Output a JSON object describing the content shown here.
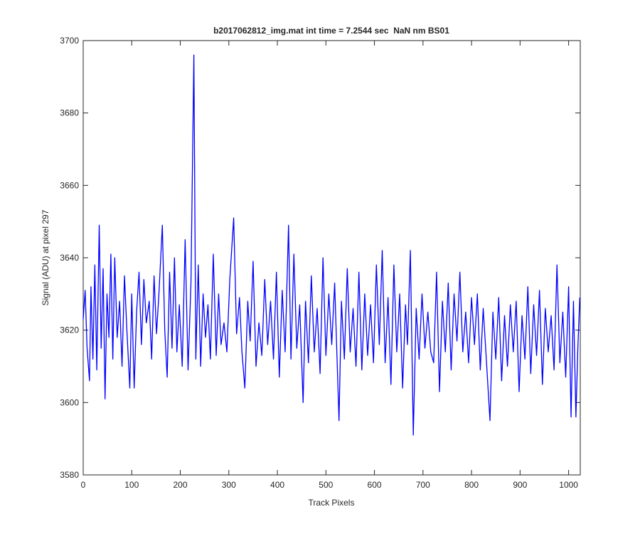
{
  "chart_data": {
    "type": "line",
    "title": "b2017062812_img.mat int time = 7.2544 sec  NaN nm BS01",
    "x_label": "Track Pixels",
    "y_label": "Signal (ADU) at pixel 297",
    "color": "#0000ff",
    "xlim": [
      0,
      1024
    ],
    "xticks": [
      0,
      100,
      200,
      300,
      400,
      500,
      600,
      700,
      800,
      900,
      1000
    ],
    "ylim": [
      3580,
      3700
    ],
    "yticks": [
      3580,
      3600,
      3620,
      3640,
      3660,
      3680,
      3700
    ],
    "grid": false,
    "x": [
      0,
      4,
      8,
      13,
      16,
      20,
      24,
      28,
      33,
      37,
      41,
      45,
      49,
      53,
      57,
      61,
      65,
      70,
      75,
      80,
      85,
      90,
      96,
      100,
      105,
      110,
      115,
      120,
      125,
      130,
      136,
      141,
      146,
      151,
      156,
      163,
      168,
      173,
      178,
      183,
      188,
      193,
      198,
      204,
      210,
      216,
      222,
      228,
      232,
      237,
      242,
      247,
      252,
      257,
      262,
      268,
      274,
      279,
      284,
      290,
      296,
      302,
      310,
      316,
      322,
      327,
      333,
      339,
      344,
      350,
      356,
      362,
      368,
      374,
      380,
      386,
      392,
      398,
      404,
      410,
      416,
      423,
      428,
      434,
      440,
      446,
      453,
      458,
      464,
      470,
      476,
      482,
      488,
      494,
      500,
      506,
      512,
      518,
      527,
      532,
      538,
      544,
      550,
      556,
      562,
      568,
      574,
      580,
      586,
      592,
      598,
      604,
      610,
      616,
      622,
      628,
      634,
      640,
      646,
      652,
      658,
      664,
      668,
      674,
      680,
      686,
      692,
      698,
      704,
      710,
      716,
      722,
      728,
      734,
      740,
      746,
      752,
      758,
      764,
      770,
      776,
      782,
      788,
      794,
      800,
      806,
      812,
      818,
      824,
      830,
      838,
      844,
      850,
      856,
      862,
      868,
      874,
      880,
      886,
      892,
      898,
      904,
      910,
      916,
      922,
      928,
      934,
      940,
      946,
      952,
      958,
      964,
      970,
      976,
      982,
      988,
      994,
      1000,
      1005,
      1010,
      1015,
      1019,
      1023
    ],
    "values": [
      3623,
      3631,
      3615,
      3606,
      3632,
      3612,
      3638,
      3609,
      3649,
      3615,
      3637,
      3601,
      3630,
      3618,
      3641,
      3612,
      3640,
      3618,
      3628,
      3610,
      3635,
      3620,
      3604,
      3630,
      3604,
      3625,
      3636,
      3616,
      3634,
      3622,
      3628,
      3612,
      3635,
      3619,
      3630,
      3649,
      3620,
      3607,
      3636,
      3615,
      3640,
      3614,
      3627,
      3610,
      3645,
      3609,
      3633,
      3696,
      3612,
      3638,
      3610,
      3630,
      3618,
      3627,
      3612,
      3641,
      3613,
      3630,
      3616,
      3622,
      3614,
      3634,
      3651,
      3619,
      3629,
      3614,
      3604,
      3628,
      3617,
      3639,
      3610,
      3622,
      3613,
      3634,
      3616,
      3628,
      3612,
      3636,
      3607,
      3631,
      3614,
      3649,
      3612,
      3641,
      3615,
      3627,
      3600,
      3628,
      3611,
      3635,
      3614,
      3626,
      3608,
      3640,
      3613,
      3630,
      3616,
      3633,
      3595,
      3628,
      3612,
      3637,
      3614,
      3626,
      3610,
      3636,
      3609,
      3630,
      3613,
      3627,
      3611,
      3638,
      3616,
      3642,
      3611,
      3629,
      3605,
      3638,
      3614,
      3630,
      3604,
      3627,
      3616,
      3642,
      3591,
      3626,
      3612,
      3630,
      3615,
      3625,
      3614,
      3611,
      3636,
      3603,
      3628,
      3614,
      3633,
      3609,
      3630,
      3617,
      3636,
      3614,
      3625,
      3611,
      3629,
      3616,
      3630,
      3609,
      3626,
      3613,
      3595,
      3625,
      3612,
      3629,
      3606,
      3624,
      3610,
      3627,
      3614,
      3628,
      3603,
      3624,
      3612,
      3632,
      3608,
      3627,
      3613,
      3631,
      3605,
      3626,
      3614,
      3624,
      3609,
      3638,
      3611,
      3625,
      3607,
      3632,
      3596,
      3628,
      3596,
      3615,
      3629
    ]
  }
}
